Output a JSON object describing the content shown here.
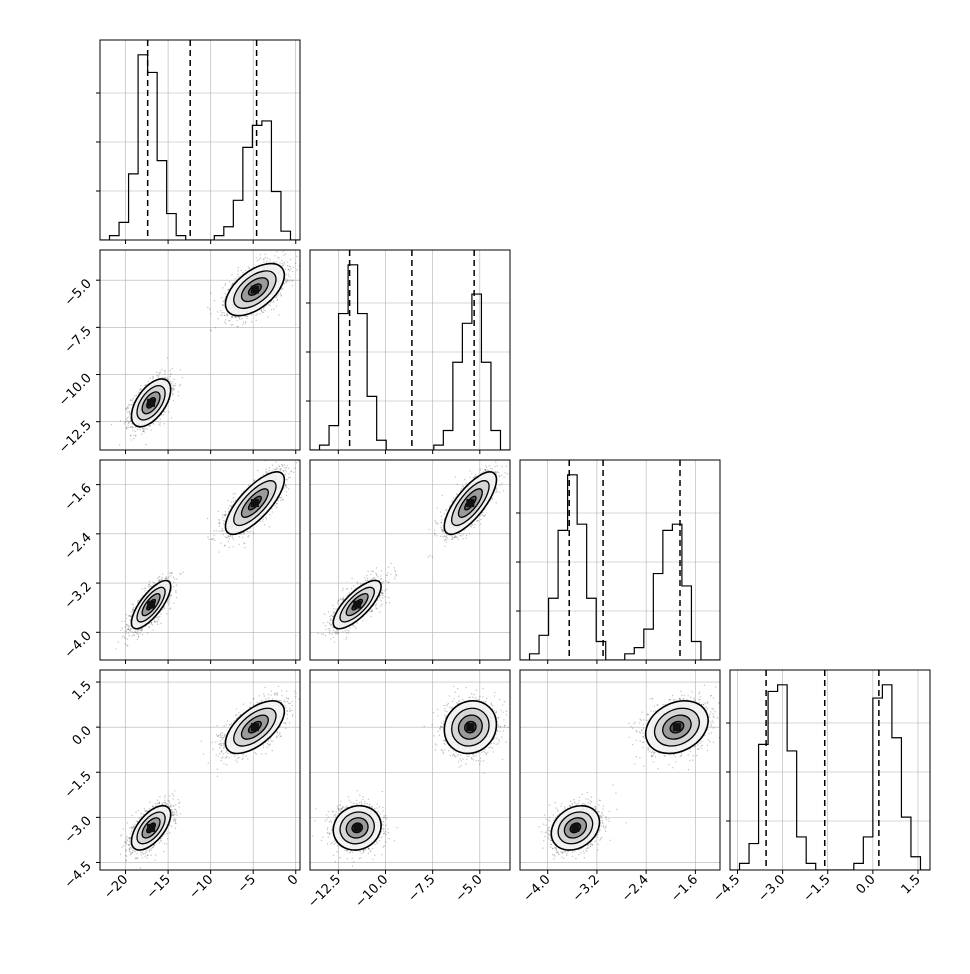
{
  "chart_data": {
    "type": "corner",
    "parameters": 4,
    "axes_labels": [
      "",
      "",
      "",
      ""
    ],
    "ranges": [
      [
        -23.0,
        0.5
      ],
      [
        -14.0,
        -3.4
      ],
      [
        -4.45,
        -1.2
      ],
      [
        -4.75,
        1.9
      ]
    ],
    "ticks": [
      {
        "values": [
          -20,
          -15,
          -10,
          -5,
          0
        ],
        "labels": [
          "−20",
          "−15",
          "−10",
          "−5",
          "0"
        ]
      },
      {
        "values": [
          -12.5,
          -10.0,
          -7.5,
          -5.0
        ],
        "labels": [
          "−12.5",
          "−10.0",
          "−7.5",
          "−5.0"
        ]
      },
      {
        "values": [
          -4.0,
          -3.2,
          -2.4,
          -1.6
        ],
        "labels": [
          "−4.0",
          "−3.2",
          "−2.4",
          "−1.6"
        ]
      },
      {
        "values": [
          -4.5,
          -3.0,
          -1.5,
          0.0,
          1.5
        ],
        "labels": [
          "−4.5",
          "−3.0",
          "−1.5",
          "0.0",
          "1.5"
        ]
      }
    ],
    "grid": true,
    "quantiles": [
      [
        -17.4,
        -12.4,
        -4.6
      ],
      [
        -11.9,
        -8.6,
        -5.3
      ],
      [
        -3.65,
        -3.1,
        -1.85
      ],
      [
        -3.55,
        -1.6,
        0.2
      ]
    ],
    "histograms": [
      {
        "edges_from": -23.0,
        "edges_to": 0.5,
        "counts": [
          0,
          1,
          4,
          15,
          42,
          38,
          18,
          6,
          1,
          0,
          0,
          0,
          1,
          3,
          9,
          21,
          26,
          27,
          11,
          2,
          0
        ]
      },
      {
        "edges_from": -14.0,
        "edges_to": -3.4,
        "counts": [
          0,
          1,
          5,
          28,
          38,
          28,
          11,
          2,
          0,
          0,
          0,
          0,
          0,
          1,
          4,
          18,
          26,
          32,
          18,
          4,
          0
        ]
      },
      {
        "edges_from": -4.45,
        "edges_to": -1.2,
        "counts": [
          0,
          1,
          4,
          10,
          21,
          30,
          22,
          10,
          3,
          0,
          0,
          1,
          2,
          5,
          14,
          21,
          22,
          12,
          3,
          0,
          0
        ]
      },
      {
        "edges_from": -4.75,
        "edges_to": 1.9,
        "counts": [
          0,
          1,
          4,
          19,
          27,
          28,
          18,
          5,
          1,
          0,
          0,
          0,
          0,
          1,
          5,
          26,
          28,
          20,
          8,
          2,
          0
        ]
      }
    ],
    "modes": [
      {
        "name": "",
        "weight": 0.5,
        "mean": [
          -17.0,
          -11.5,
          -3.55,
          -3.35
        ],
        "sd": [
          1.0,
          0.55,
          0.17,
          0.32
        ]
      },
      {
        "name": "",
        "weight": 0.5,
        "mean": [
          -4.8,
          -5.5,
          -1.9,
          0.0
        ],
        "sd": [
          1.5,
          0.6,
          0.22,
          0.38
        ]
      }
    ],
    "correlations": [
      [
        1.0,
        0.55,
        0.75,
        0.6
      ],
      [
        0.55,
        1.0,
        0.75,
        0.1
      ],
      [
        0.75,
        0.75,
        1.0,
        0.25
      ],
      [
        0.6,
        0.1,
        0.25,
        1.0
      ]
    ],
    "styles": {
      "hist_color": "#000000",
      "quantile_color": "#000000",
      "scatter_color": "#555555",
      "grid_color": "#b0b0b0",
      "contour_color": "#000000",
      "fill_colors": [
        "#f4f4f4",
        "#d6d6d6",
        "#9a9a9a",
        "#555555"
      ]
    }
  }
}
